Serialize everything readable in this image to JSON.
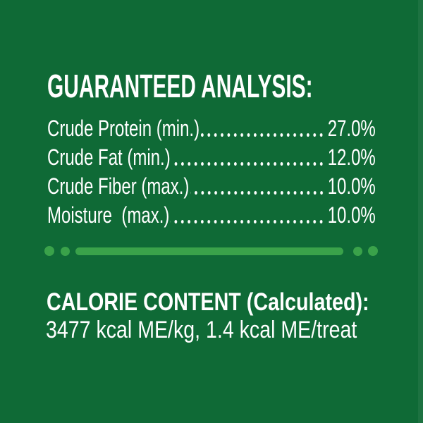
{
  "colors": {
    "background_green": "#0f6a36",
    "accent_green": "#3aa24a",
    "text_white": "#ffffff"
  },
  "guaranteed_analysis": {
    "heading": "GUARANTEED ANALYSIS:",
    "rows": [
      {
        "label": "Crude Protein (min.)",
        "value": "27.0%"
      },
      {
        "label": "Crude Fat (min.)",
        "value": "12.0%"
      },
      {
        "label": "Crude Fiber (max.)",
        "value": "10.0%"
      },
      {
        "label": "Moisture  (max.)",
        "value": "10.0%"
      }
    ]
  },
  "calorie_content": {
    "heading": "CALORIE CONTENT (Calculated):",
    "value": "3477 kcal ME/kg, 1.4 kcal ME/treat"
  }
}
